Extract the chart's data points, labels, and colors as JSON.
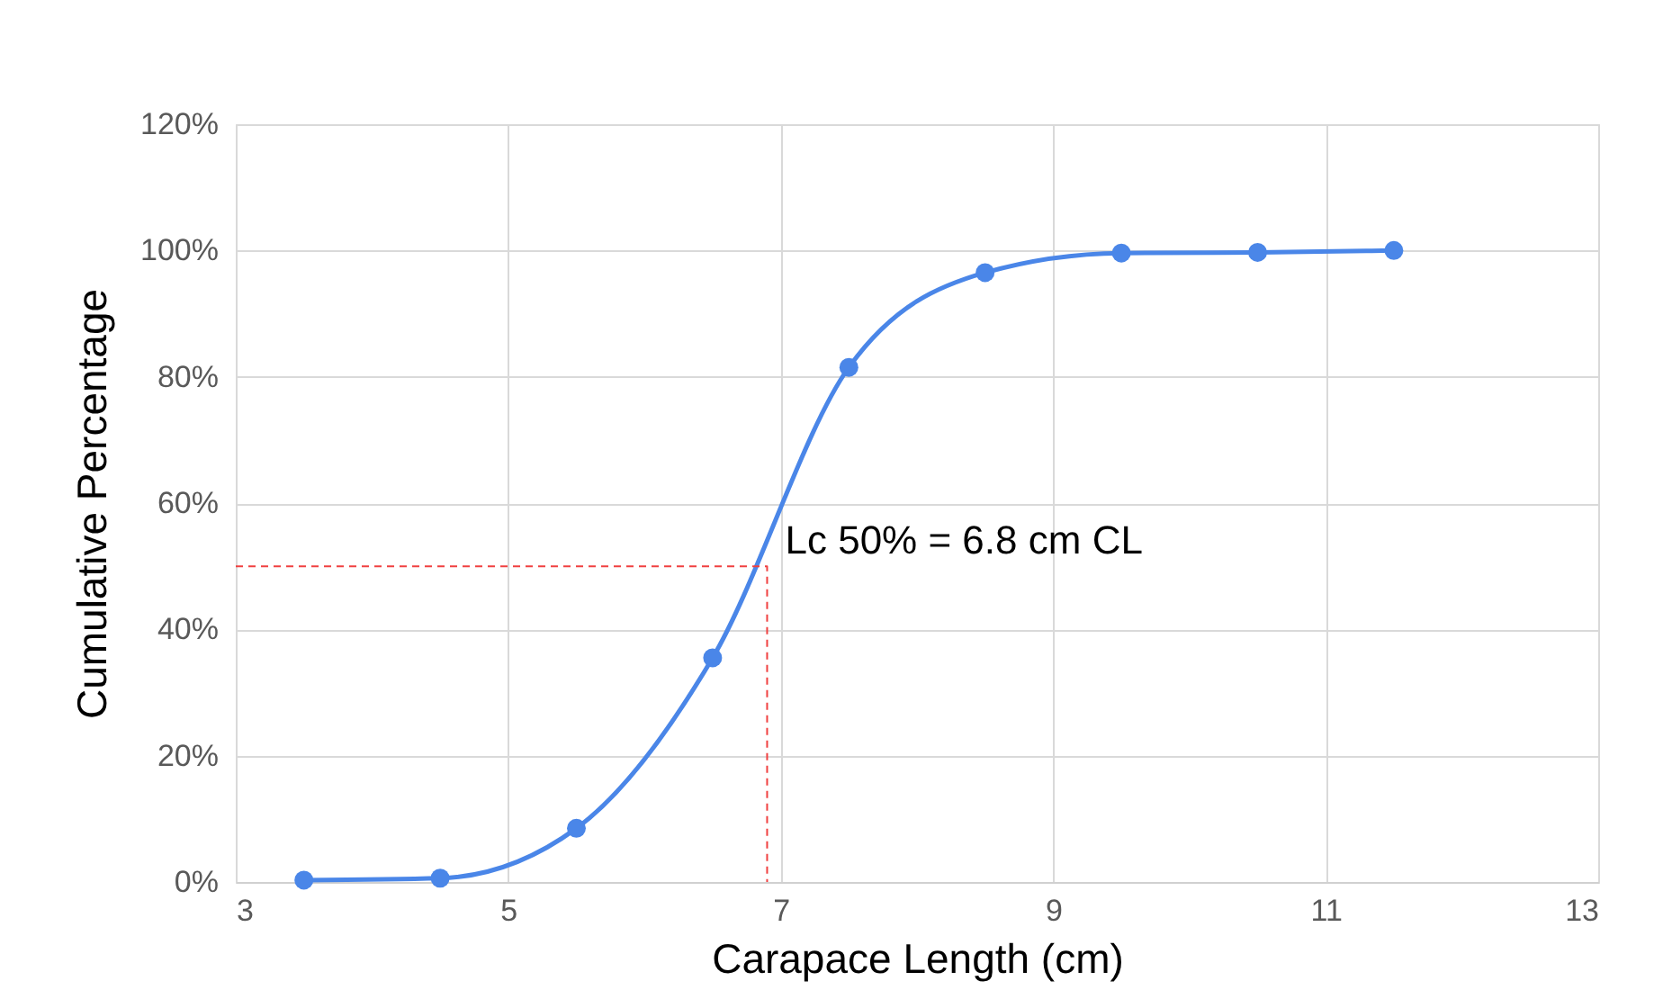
{
  "chart_data": {
    "type": "line",
    "xlabel": "Carapace Length (cm)",
    "ylabel": "Cumulative Percentage",
    "xlim": [
      3,
      13
    ],
    "xticks": [
      3,
      5,
      7,
      9,
      11,
      13
    ],
    "ylim": [
      0,
      120
    ],
    "yticks": [
      {
        "value": 0,
        "label": "0%"
      },
      {
        "value": 20,
        "label": "20%"
      },
      {
        "value": 40,
        "label": "40%"
      },
      {
        "value": 60,
        "label": "60%"
      },
      {
        "value": 80,
        "label": "80%"
      },
      {
        "value": 100,
        "label": "100%"
      },
      {
        "value": 120,
        "label": "120%"
      }
    ],
    "grid": true,
    "legend": false,
    "series": [
      {
        "color": "#4a86e8",
        "marker": "circle",
        "line_style": "solid",
        "x": [
          3.5,
          4.5,
          5.5,
          6.5,
          7.5,
          8.5,
          9.5,
          10.5,
          11.5
        ],
        "values": [
          0.3,
          0.6,
          8.5,
          35.5,
          81.5,
          96.5,
          99.6,
          99.7,
          100
        ]
      },
      {
        "color": "#f04040",
        "marker": "none",
        "line_style": "dashed",
        "x": [
          3,
          6.9,
          6.9
        ],
        "values": [
          50,
          50,
          0
        ]
      }
    ],
    "annotations": [
      "Lc 50% = 6.8 cm CL"
    ]
  }
}
